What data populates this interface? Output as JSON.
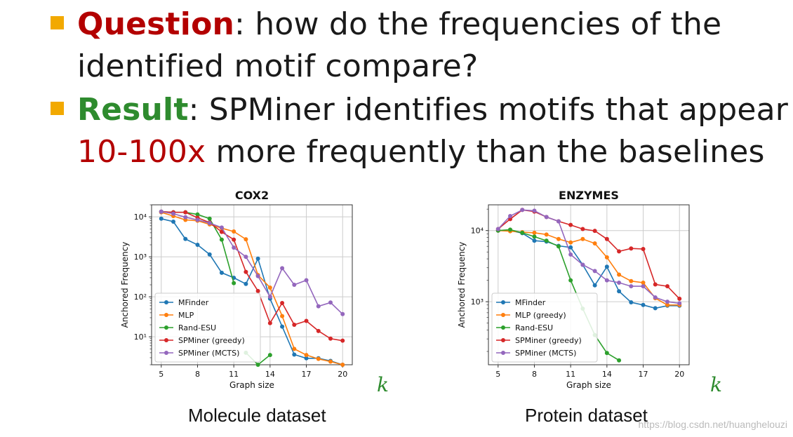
{
  "bullets": [
    {
      "keyword": "Question",
      "rest": ": how do the frequencies of the",
      "line2": "identified motif compare?"
    },
    {
      "keyword": "Result",
      "rest": ": SPMiner identifies motifs that appear",
      "line2_highlight": "10-100x",
      "line2_rest": " more frequently than the baselines"
    }
  ],
  "captions": {
    "left": "Molecule dataset",
    "right": "Protein dataset"
  },
  "k_label": "k",
  "watermark": "https://blog.csdn.net/huanghelouzi",
  "colors": {
    "MFinder": "#1f77b4",
    "MLP": "#ff7f0e",
    "Rand-ESU": "#2ca02c",
    "SPMiner (greedy)": "#d62728",
    "SPMiner (MCTS)": "#9467bd"
  },
  "chart_data": [
    {
      "type": "line",
      "title": "COX2",
      "xlabel": "Graph size",
      "ylabel": "Anchored Frequency",
      "yscale": "log",
      "ylim": [
        2,
        20000
      ],
      "xlim": [
        4.2,
        20.8
      ],
      "xticks": [
        5,
        8,
        11,
        14,
        17,
        20
      ],
      "yticks": [
        {
          "value": 10,
          "label": "10¹"
        },
        {
          "value": 100,
          "label": "10²"
        },
        {
          "value": 1000,
          "label": "10³"
        },
        {
          "value": 10000,
          "label": "10⁴"
        }
      ],
      "legend_position": "lower-left",
      "series": [
        {
          "name": "MFinder",
          "x": [
            5,
            6,
            7,
            8,
            9,
            10,
            11,
            12,
            13,
            14,
            15,
            16,
            17,
            18,
            19,
            20
          ],
          "values": [
            9000,
            7600,
            2800,
            2000,
            1150,
            400,
            300,
            210,
            900,
            90,
            18,
            3.6,
            2.9,
            2.9,
            2.5,
            2
          ]
        },
        {
          "name": "MLP",
          "x": [
            5,
            6,
            7,
            8,
            9,
            10,
            11,
            12,
            13,
            14,
            15,
            16,
            17,
            18,
            19,
            20
          ],
          "values": [
            13000,
            10500,
            8400,
            8000,
            6500,
            5200,
            4300,
            2750,
            350,
            170,
            33,
            5,
            3.5,
            2.8,
            2.4,
            2
          ]
        },
        {
          "name": "Rand-ESU",
          "x": [
            5,
            6,
            7,
            8,
            9,
            10,
            11
          ],
          "values": [
            13500,
            13000,
            13000,
            11500,
            9000,
            2700,
            220
          ]
        },
        {
          "name": "Rand-ESU",
          "x": [
            12,
            13,
            14
          ],
          "values": [
            4,
            2,
            3.5
          ]
        },
        {
          "name": "SPMiner (greedy)",
          "x": [
            5,
            6,
            7,
            8,
            9,
            10,
            11,
            12,
            13,
            14,
            15,
            16,
            17,
            18,
            19,
            20
          ],
          "values": [
            13500,
            13000,
            13000,
            9500,
            7200,
            4200,
            2700,
            420,
            140,
            22,
            70,
            20,
            25,
            14,
            9,
            8
          ]
        },
        {
          "name": "SPMiner (MCTS)",
          "x": [
            5,
            6,
            7,
            8,
            9,
            10,
            11,
            12,
            13,
            14,
            15,
            16,
            17,
            18,
            19,
            20
          ],
          "values": [
            13500,
            12000,
            9800,
            8400,
            7000,
            5400,
            1700,
            1000,
            330,
            100,
            520,
            200,
            260,
            58,
            72,
            37
          ]
        }
      ]
    },
    {
      "type": "line",
      "title": "ENZYMES",
      "xlabel": "Graph size",
      "ylabel": "Anchored Frequency",
      "yscale": "log",
      "ylim": [
        130,
        23000
      ],
      "xlim": [
        4.2,
        20.8
      ],
      "xticks": [
        5,
        8,
        11,
        14,
        17,
        20
      ],
      "yticks": [
        {
          "value": 1000,
          "label": "10³"
        },
        {
          "value": 10000,
          "label": "10⁴"
        }
      ],
      "legend_position": "lower-left",
      "series": [
        {
          "name": "MFinder",
          "x": [
            5,
            6,
            7,
            8,
            9,
            10,
            11,
            12,
            13,
            14,
            15,
            16,
            17,
            18,
            19,
            20
          ],
          "values": [
            10000,
            10000,
            9200,
            7200,
            7000,
            6100,
            5800,
            3300,
            1700,
            3100,
            1400,
            980,
            900,
            810,
            880,
            880
          ]
        },
        {
          "name": "MLP (greedy)",
          "x": [
            5,
            6,
            7,
            8,
            9,
            10,
            11,
            12,
            13,
            14,
            15,
            16,
            17,
            18,
            19,
            20
          ],
          "values": [
            10000,
            9800,
            9500,
            9300,
            8800,
            7600,
            6800,
            7600,
            6600,
            4200,
            2400,
            1950,
            1850,
            1120,
            900,
            900
          ]
        },
        {
          "name": "Rand-ESU",
          "x": [
            5,
            6,
            7,
            8,
            9,
            10,
            11,
            12,
            13,
            14,
            15
          ],
          "values": [
            10000,
            10300,
            9300,
            8200,
            7200,
            6000,
            2000,
            800,
            340,
            190,
            150
          ]
        },
        {
          "name": "SPMiner (greedy)",
          "x": [
            5,
            6,
            7,
            8,
            9,
            10,
            11,
            12,
            13,
            14,
            15,
            16,
            17,
            18,
            19,
            20
          ],
          "values": [
            10500,
            14500,
            19500,
            18500,
            15500,
            13500,
            12000,
            10500,
            9900,
            7600,
            5100,
            5600,
            5500,
            1750,
            1650,
            1100
          ]
        },
        {
          "name": "SPMiner (MCTS)",
          "x": [
            5,
            6,
            7,
            8,
            9,
            10,
            11,
            12,
            13,
            14,
            15,
            16,
            17,
            18,
            19,
            20
          ],
          "values": [
            10500,
            16000,
            19500,
            19000,
            15500,
            13500,
            4600,
            3300,
            2700,
            2000,
            1850,
            1650,
            1650,
            1150,
            1000,
            950
          ]
        }
      ]
    }
  ]
}
